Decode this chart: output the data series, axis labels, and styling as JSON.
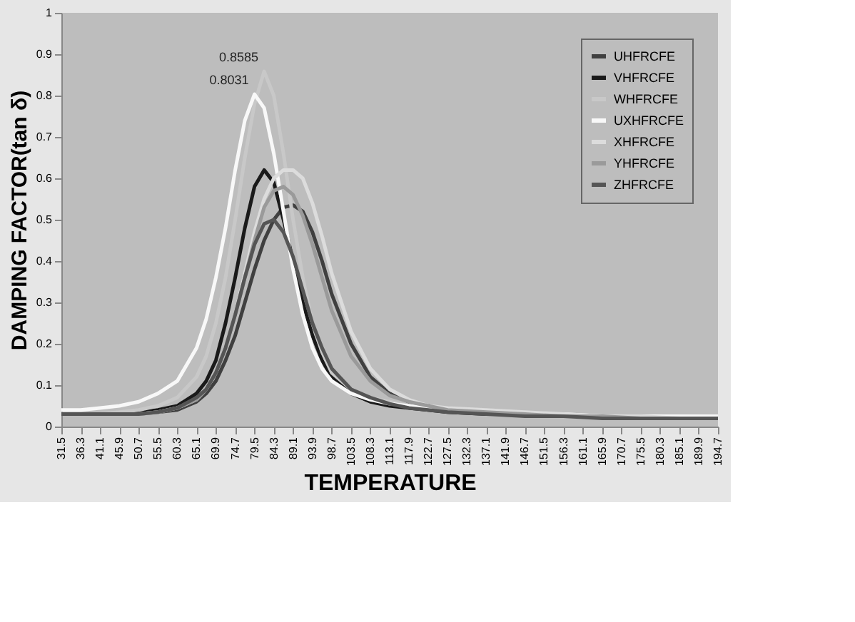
{
  "chart_data": {
    "type": "line",
    "xlabel": "TEMPERATURE",
    "ylabel": "DAMPING FACTOR(tan δ)",
    "x": [
      31.5,
      36.3,
      41.1,
      45.9,
      50.7,
      55.5,
      60.3,
      65.1,
      67.5,
      69.9,
      72.3,
      74.7,
      77.1,
      79.5,
      81.9,
      84.3,
      86.7,
      89.1,
      91.5,
      93.9,
      96.3,
      98.7,
      103.5,
      108.3,
      113.1,
      117.9,
      122.7,
      127.5,
      137.1,
      146.7,
      156.3,
      165.9,
      175.5,
      185.1,
      194.7
    ],
    "series": [
      {
        "name": "UHFRCFE",
        "color": "#404040",
        "values": [
          0.03,
          0.03,
          0.03,
          0.03,
          0.03,
          0.035,
          0.04,
          0.06,
          0.08,
          0.11,
          0.16,
          0.22,
          0.3,
          0.38,
          0.45,
          0.5,
          0.53,
          0.535,
          0.52,
          0.47,
          0.4,
          0.32,
          0.2,
          0.12,
          0.08,
          0.06,
          0.05,
          0.04,
          0.035,
          0.03,
          0.025,
          0.025,
          0.02,
          0.02,
          0.02
        ]
      },
      {
        "name": "VHFRCFE",
        "color": "#1a1a1a",
        "values": [
          0.03,
          0.03,
          0.03,
          0.03,
          0.035,
          0.04,
          0.05,
          0.08,
          0.11,
          0.16,
          0.25,
          0.36,
          0.48,
          0.58,
          0.62,
          0.59,
          0.5,
          0.4,
          0.3,
          0.22,
          0.16,
          0.12,
          0.08,
          0.06,
          0.05,
          0.045,
          0.04,
          0.035,
          0.03,
          0.03,
          0.025,
          0.025,
          0.02,
          0.02,
          0.02
        ]
      },
      {
        "name": "WHFRCFE",
        "color": "#c8c8c8",
        "values": [
          0.03,
          0.03,
          0.03,
          0.035,
          0.04,
          0.05,
          0.07,
          0.12,
          0.17,
          0.25,
          0.36,
          0.5,
          0.65,
          0.78,
          0.8585,
          0.8,
          0.66,
          0.5,
          0.36,
          0.25,
          0.18,
          0.13,
          0.09,
          0.07,
          0.06,
          0.05,
          0.045,
          0.04,
          0.035,
          0.03,
          0.03,
          0.025,
          0.025,
          0.025,
          0.025
        ]
      },
      {
        "name": "UXHFRCFE",
        "color": "#f8f8f8",
        "values": [
          0.04,
          0.04,
          0.045,
          0.05,
          0.06,
          0.08,
          0.11,
          0.19,
          0.26,
          0.36,
          0.48,
          0.62,
          0.74,
          0.8031,
          0.77,
          0.66,
          0.52,
          0.38,
          0.27,
          0.19,
          0.14,
          0.11,
          0.08,
          0.065,
          0.055,
          0.05,
          0.045,
          0.04,
          0.035,
          0.03,
          0.03,
          0.025,
          0.025,
          0.025,
          0.025
        ]
      },
      {
        "name": "XHFRCFE",
        "color": "#dcdcdc",
        "values": [
          0.03,
          0.03,
          0.03,
          0.03,
          0.03,
          0.035,
          0.045,
          0.065,
          0.09,
          0.13,
          0.19,
          0.27,
          0.37,
          0.47,
          0.55,
          0.6,
          0.62,
          0.62,
          0.6,
          0.54,
          0.46,
          0.37,
          0.23,
          0.14,
          0.09,
          0.065,
          0.05,
          0.045,
          0.04,
          0.035,
          0.03,
          0.025,
          0.025,
          0.02,
          0.02
        ]
      },
      {
        "name": "YHFRCFE",
        "color": "#9a9a9a",
        "values": [
          0.03,
          0.03,
          0.03,
          0.03,
          0.03,
          0.035,
          0.045,
          0.065,
          0.09,
          0.13,
          0.19,
          0.27,
          0.36,
          0.45,
          0.53,
          0.57,
          0.58,
          0.56,
          0.51,
          0.44,
          0.36,
          0.28,
          0.17,
          0.11,
          0.075,
          0.06,
          0.05,
          0.04,
          0.035,
          0.03,
          0.025,
          0.025,
          0.02,
          0.02,
          0.02
        ]
      },
      {
        "name": "ZHFRCFE",
        "color": "#555555",
        "values": [
          0.03,
          0.03,
          0.03,
          0.03,
          0.03,
          0.035,
          0.045,
          0.07,
          0.09,
          0.13,
          0.19,
          0.27,
          0.36,
          0.44,
          0.49,
          0.5,
          0.47,
          0.41,
          0.33,
          0.25,
          0.19,
          0.14,
          0.09,
          0.07,
          0.055,
          0.045,
          0.04,
          0.035,
          0.03,
          0.025,
          0.025,
          0.02,
          0.02,
          0.02,
          0.02
        ]
      }
    ],
    "annotations": [
      {
        "text": "0.8031",
        "x": 79.5,
        "y": 0.8031
      },
      {
        "text": "0.8585",
        "x": 81.9,
        "y": 0.8585
      }
    ],
    "xlim": [
      31.5,
      194.7
    ],
    "xticks": [
      31.5,
      36.3,
      41.1,
      45.9,
      50.7,
      55.5,
      60.3,
      65.1,
      69.9,
      74.7,
      79.5,
      84.3,
      89.1,
      93.9,
      98.7,
      103.5,
      108.3,
      113.1,
      117.9,
      122.7,
      127.5,
      132.3,
      137.1,
      141.9,
      146.7,
      151.5,
      156.3,
      161.1,
      165.9,
      170.7,
      175.5,
      180.3,
      185.1,
      189.9,
      194.7
    ],
    "ylim": [
      0,
      1
    ],
    "yticks": [
      0,
      0.1,
      0.2,
      0.3,
      0.4,
      0.5,
      0.6,
      0.7,
      0.8,
      0.9,
      1
    ],
    "grid": false,
    "legend": "top right",
    "marker": "none",
    "line_style": "solid"
  }
}
